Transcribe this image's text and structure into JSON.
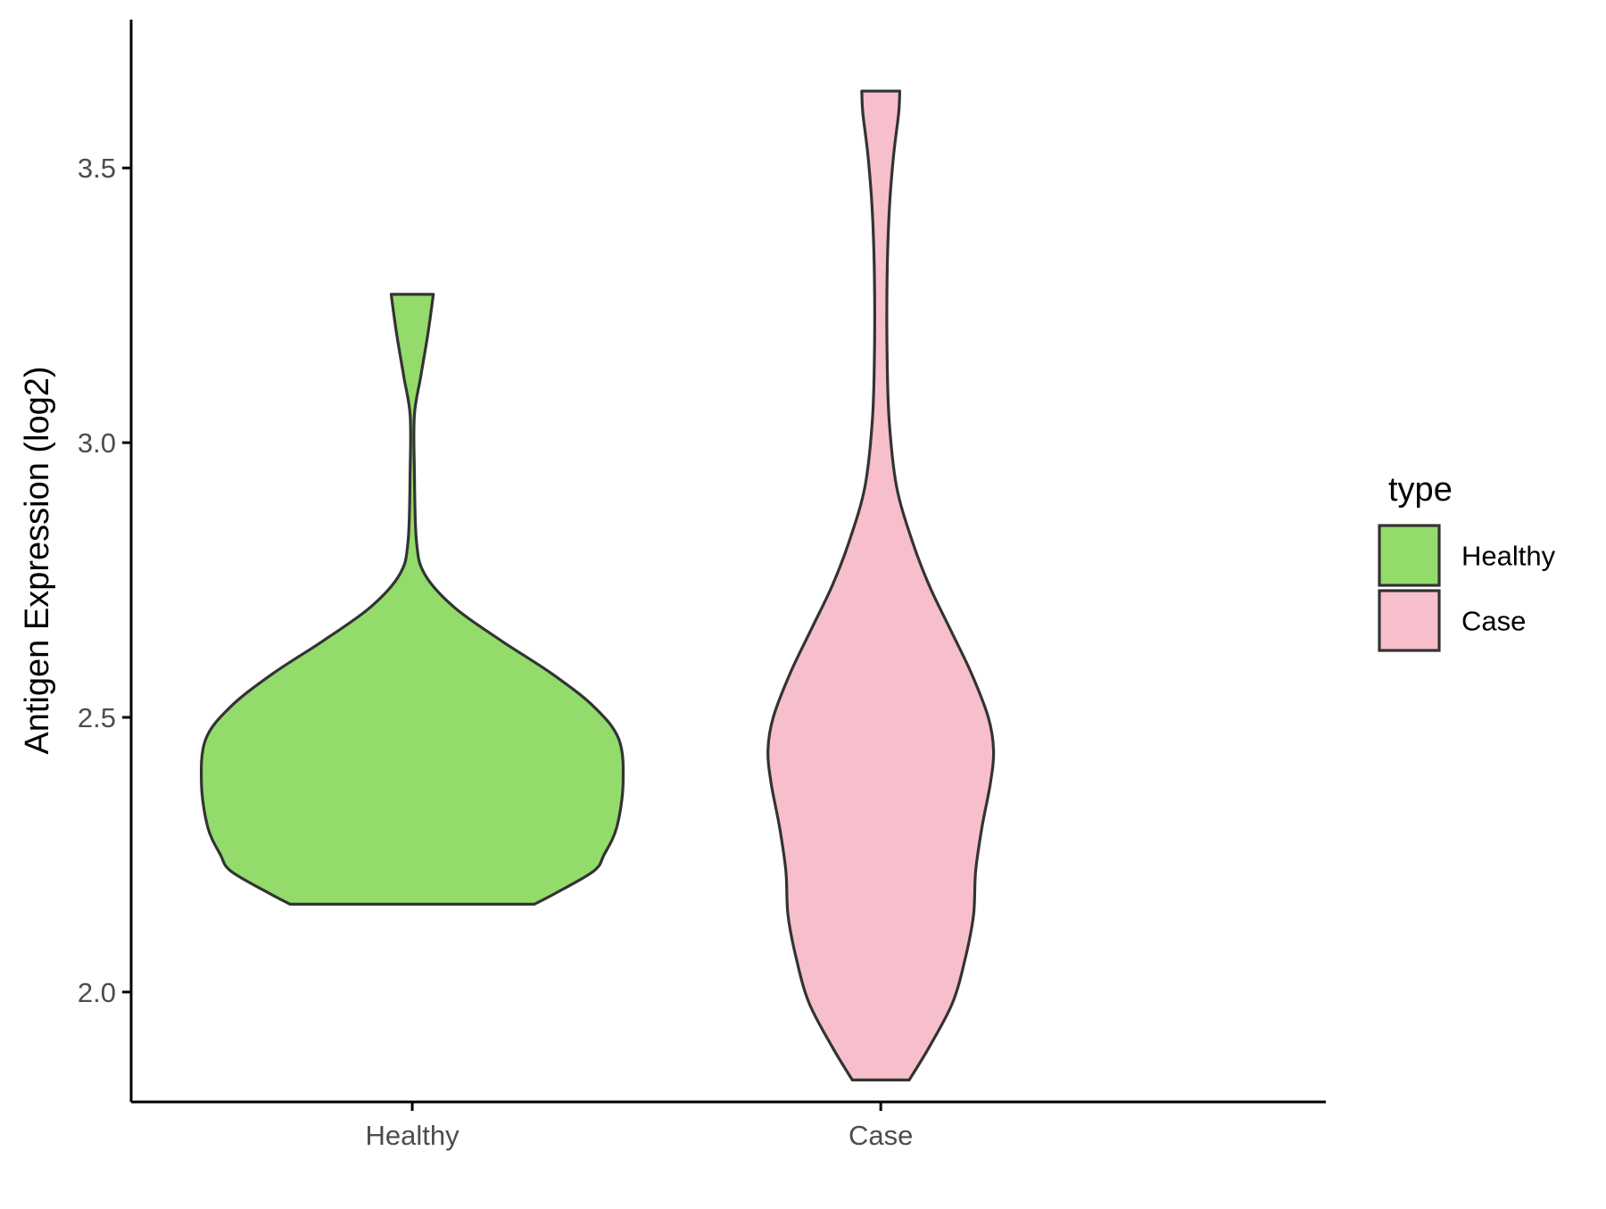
{
  "chart_data": {
    "type": "violin",
    "title": "",
    "xlabel": "",
    "ylabel": "Antigen Expression (log2)",
    "categories": [
      "Healthy",
      "Case"
    ],
    "ylim": [
      1.8,
      3.77
    ],
    "yticks": [
      {
        "value": 2.0,
        "label": "2.0"
      },
      {
        "value": 2.5,
        "label": "2.5"
      },
      {
        "value": 3.0,
        "label": "3.0"
      },
      {
        "value": 3.5,
        "label": "3.5"
      }
    ],
    "grid": false,
    "legend": {
      "title": "type",
      "placement": "right",
      "entries": [
        {
          "label": "Healthy",
          "color": "#93DC6B"
        },
        {
          "label": "Case",
          "color": "#F7BFCB"
        }
      ]
    },
    "series": [
      {
        "category": "Healthy",
        "color": "#93DC6B",
        "min": 2.16,
        "max": 3.27,
        "density_profile": [
          [
            2.16,
            0.58
          ],
          [
            2.18,
            0.68
          ],
          [
            2.22,
            0.86
          ],
          [
            2.25,
            0.91
          ],
          [
            2.3,
            0.97
          ],
          [
            2.38,
            1.0
          ],
          [
            2.46,
            0.98
          ],
          [
            2.52,
            0.86
          ],
          [
            2.58,
            0.66
          ],
          [
            2.64,
            0.42
          ],
          [
            2.7,
            0.2
          ],
          [
            2.76,
            0.06
          ],
          [
            2.82,
            0.02
          ],
          [
            2.95,
            0.01
          ],
          [
            3.05,
            0.01
          ],
          [
            3.12,
            0.04
          ],
          [
            3.2,
            0.075
          ],
          [
            3.27,
            0.1
          ]
        ]
      },
      {
        "category": "Case",
        "color": "#F7BFCB",
        "min": 1.84,
        "max": 3.64,
        "density_profile": [
          [
            1.84,
            0.135
          ],
          [
            1.9,
            0.23
          ],
          [
            1.98,
            0.34
          ],
          [
            2.06,
            0.4
          ],
          [
            2.14,
            0.44
          ],
          [
            2.22,
            0.45
          ],
          [
            2.3,
            0.48
          ],
          [
            2.38,
            0.52
          ],
          [
            2.44,
            0.535
          ],
          [
            2.5,
            0.51
          ],
          [
            2.58,
            0.43
          ],
          [
            2.66,
            0.33
          ],
          [
            2.74,
            0.23
          ],
          [
            2.82,
            0.15
          ],
          [
            2.92,
            0.075
          ],
          [
            3.04,
            0.04
          ],
          [
            3.16,
            0.03
          ],
          [
            3.3,
            0.03
          ],
          [
            3.42,
            0.04
          ],
          [
            3.52,
            0.06
          ],
          [
            3.6,
            0.085
          ],
          [
            3.64,
            0.09
          ]
        ]
      }
    ]
  }
}
